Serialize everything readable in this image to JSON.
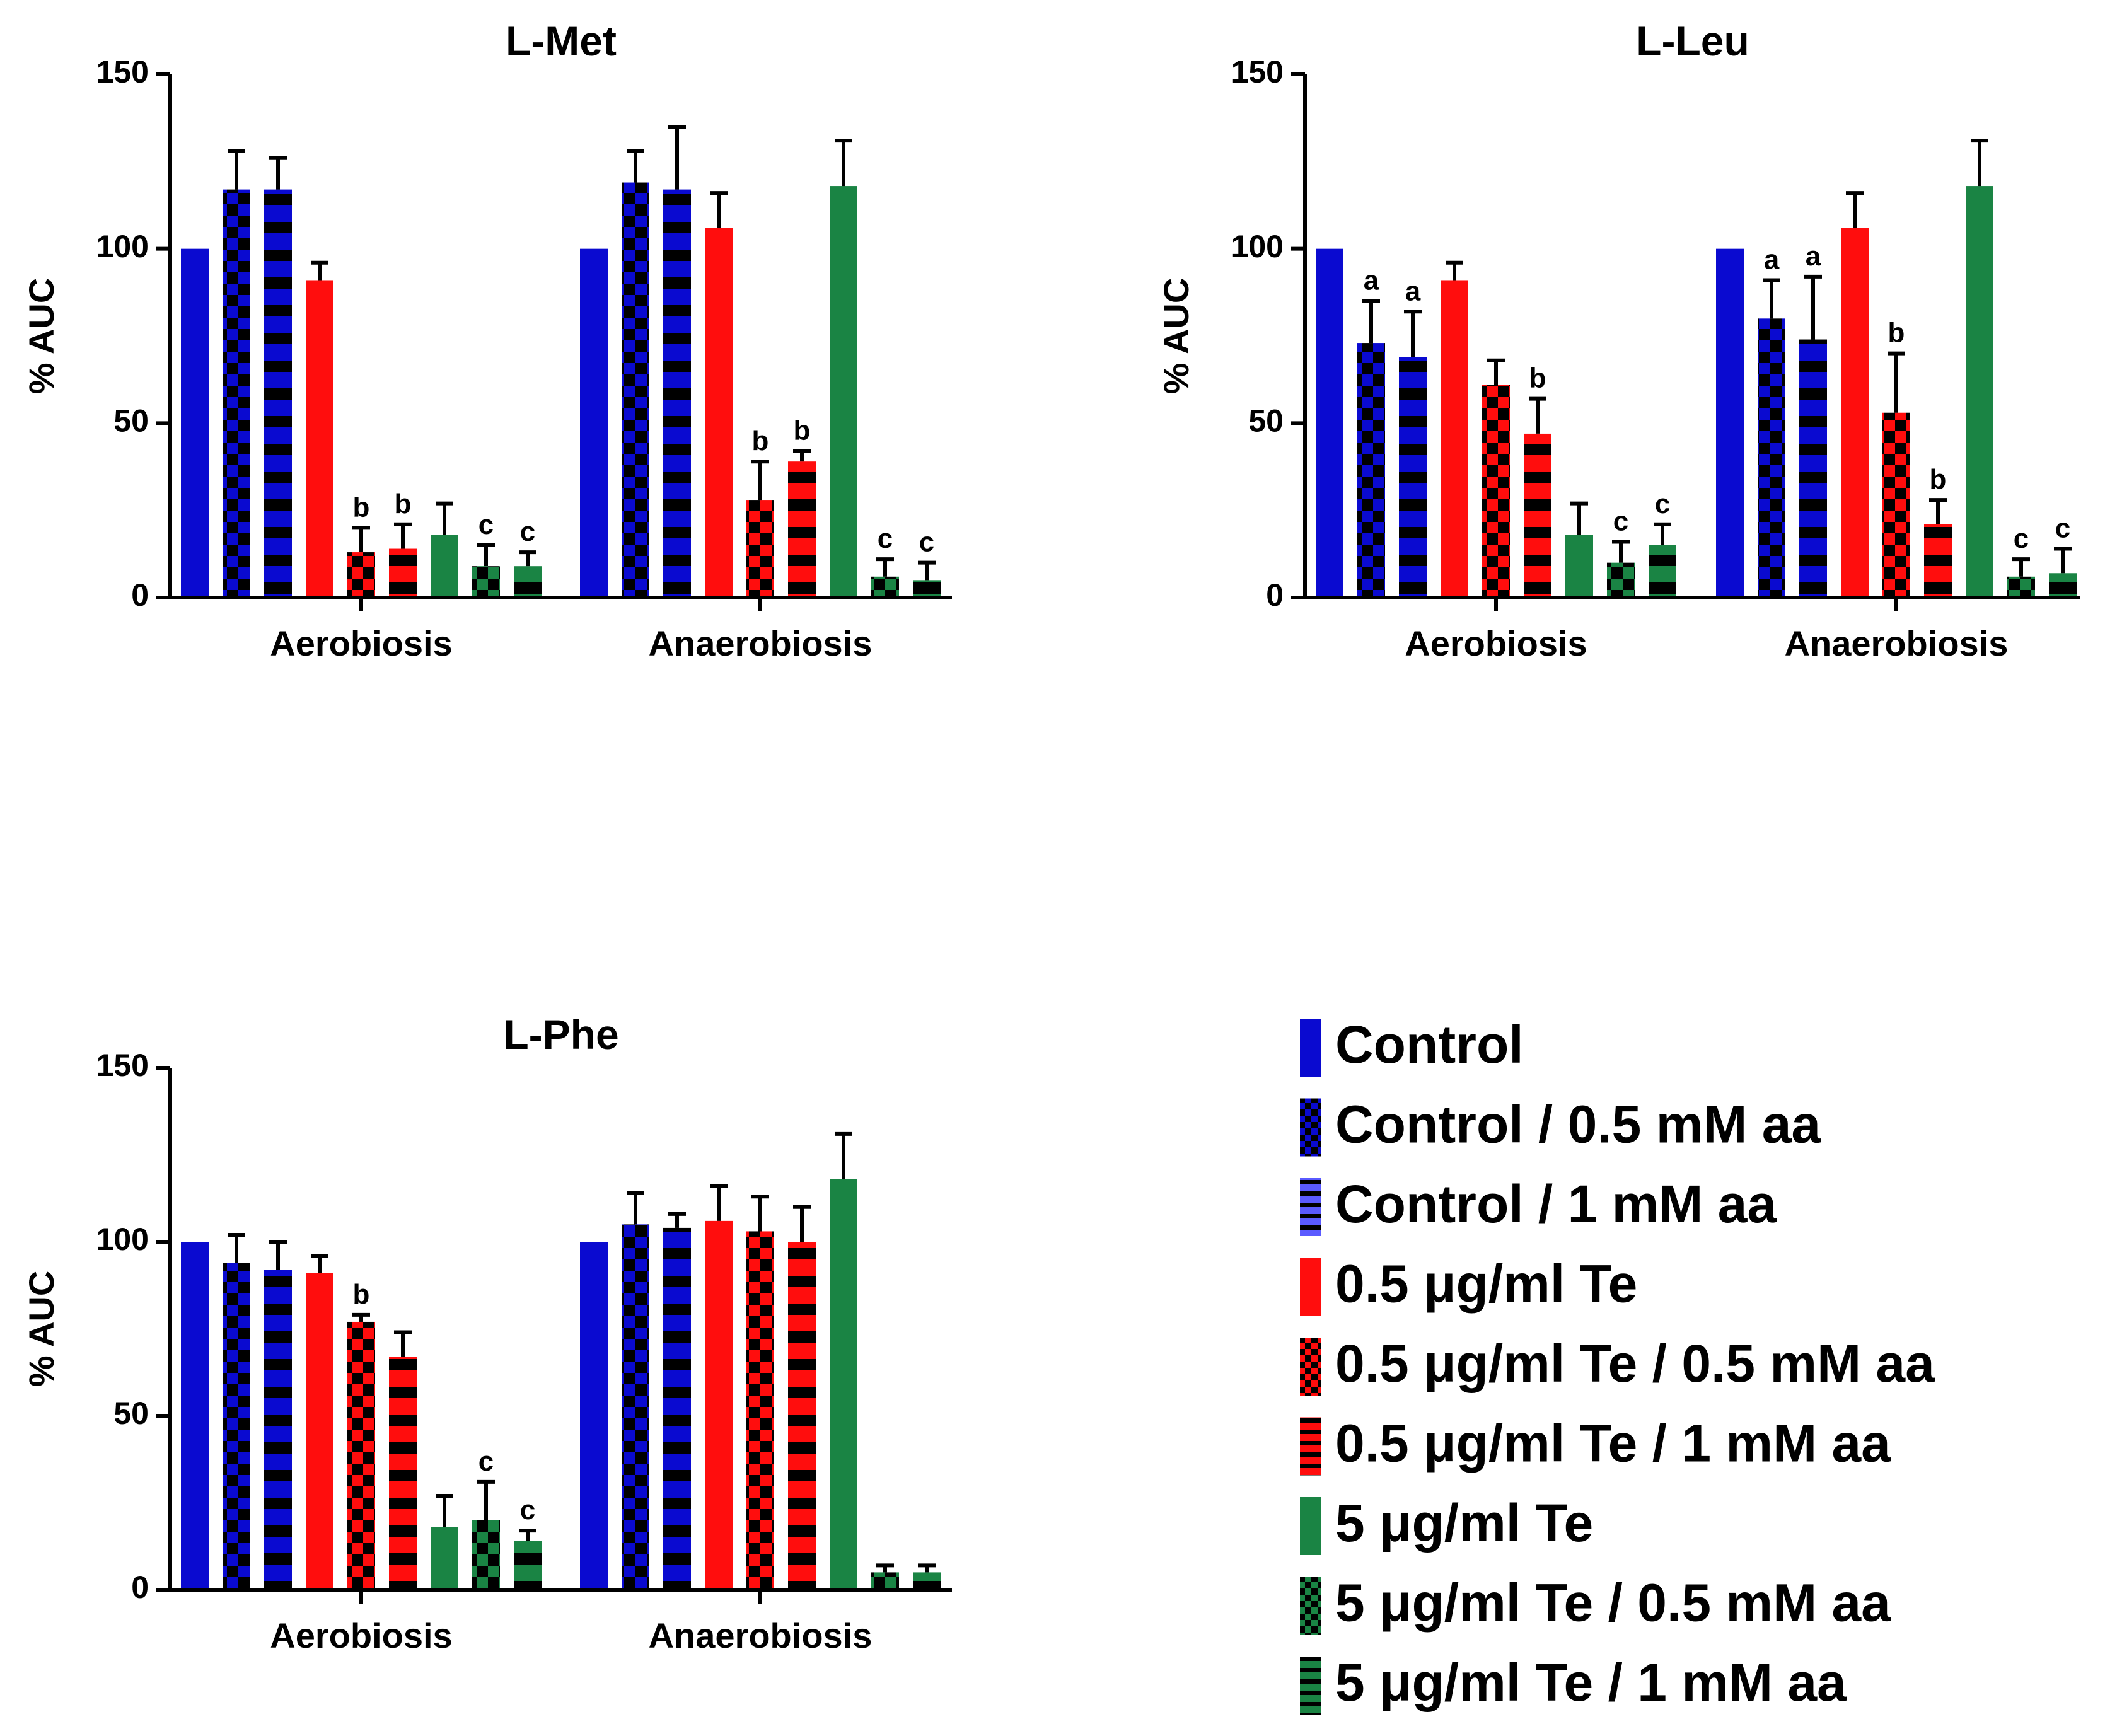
{
  "legend": [
    {
      "label": "Control",
      "color": "#0a0ad0",
      "pattern": "solid"
    },
    {
      "label": "Control / 0.5 mM aa",
      "color": "#0a0ad0",
      "pattern": "checker"
    },
    {
      "label": "Control / 1 mM aa",
      "color": "#0a0ad0",
      "pattern": "stripe"
    },
    {
      "label": "0.5 μg/ml Te",
      "color": "#ff0d0d",
      "pattern": "solid"
    },
    {
      "label": "0.5 μg/ml Te / 0.5 mM aa",
      "color": "#ff0d0d",
      "pattern": "checker"
    },
    {
      "label": "0.5 μg/ml Te / 1 mM aa",
      "color": "#ff0d0d",
      "pattern": "stripe"
    },
    {
      "label": "5 μg/ml Te",
      "color": "#1a8444",
      "pattern": "solid"
    },
    {
      "label": "5 μg/ml Te / 0.5 mM aa",
      "color": "#1a8444",
      "pattern": "checker"
    },
    {
      "label": "5 μg/ml Te / 1 mM aa",
      "color": "#1a8444",
      "pattern": "stripe"
    }
  ],
  "chart_data": [
    {
      "type": "bar",
      "title": "L-Met",
      "ylabel": "% AUC",
      "xlabel": "",
      "ylim": [
        0,
        150
      ],
      "yticks": [
        0,
        50,
        100,
        150
      ],
      "categories": [
        "Aerobiosis",
        "Anaerobiosis"
      ],
      "series": [
        {
          "name": "Control",
          "values": [
            100,
            100
          ],
          "errors": [
            0,
            0
          ],
          "sig": [
            "",
            ""
          ]
        },
        {
          "name": "Control / 0.5 mM aa",
          "values": [
            117,
            119
          ],
          "errors": [
            11,
            9
          ],
          "sig": [
            "",
            ""
          ]
        },
        {
          "name": "Control / 1 mM aa",
          "values": [
            117,
            117
          ],
          "errors": [
            9,
            18
          ],
          "sig": [
            "",
            ""
          ]
        },
        {
          "name": "0.5 μg/ml Te",
          "values": [
            91,
            106
          ],
          "errors": [
            5,
            10
          ],
          "sig": [
            "",
            ""
          ]
        },
        {
          "name": "0.5 μg/ml Te / 0.5 mM aa",
          "values": [
            13,
            28
          ],
          "errors": [
            7,
            11
          ],
          "sig": [
            "b",
            "b"
          ]
        },
        {
          "name": "0.5 μg/ml Te / 1 mM aa",
          "values": [
            14,
            39
          ],
          "errors": [
            7,
            3
          ],
          "sig": [
            "b",
            "b"
          ]
        },
        {
          "name": "5 μg/ml Te",
          "values": [
            18,
            118
          ],
          "errors": [
            9,
            13
          ],
          "sig": [
            "",
            ""
          ]
        },
        {
          "name": "5 μg/ml Te / 0.5 mM aa",
          "values": [
            9,
            6
          ],
          "errors": [
            6,
            5
          ],
          "sig": [
            "c",
            "c"
          ]
        },
        {
          "name": "5 μg/ml Te / 1 mM aa",
          "values": [
            9,
            5
          ],
          "errors": [
            4,
            5
          ],
          "sig": [
            "c",
            "c"
          ]
        }
      ]
    },
    {
      "type": "bar",
      "title": "L-Leu",
      "ylabel": "% AUC",
      "xlabel": "",
      "ylim": [
        0,
        150
      ],
      "yticks": [
        0,
        50,
        100,
        150
      ],
      "categories": [
        "Aerobiosis",
        "Anaerobiosis"
      ],
      "series": [
        {
          "name": "Control",
          "values": [
            100,
            100
          ],
          "errors": [
            0,
            0
          ],
          "sig": [
            "",
            ""
          ]
        },
        {
          "name": "Control / 0.5 mM aa",
          "values": [
            73,
            80
          ],
          "errors": [
            12,
            11
          ],
          "sig": [
            "a",
            "a"
          ]
        },
        {
          "name": "Control / 1 mM aa",
          "values": [
            69,
            74
          ],
          "errors": [
            13,
            18
          ],
          "sig": [
            "a",
            "a"
          ]
        },
        {
          "name": "0.5 μg/ml Te",
          "values": [
            91,
            106
          ],
          "errors": [
            5,
            10
          ],
          "sig": [
            "",
            ""
          ]
        },
        {
          "name": "0.5 μg/ml Te / 0.5 mM aa",
          "values": [
            61,
            53
          ],
          "errors": [
            7,
            17
          ],
          "sig": [
            "",
            "b"
          ]
        },
        {
          "name": "0.5 μg/ml Te / 1 mM aa",
          "values": [
            47,
            21
          ],
          "errors": [
            10,
            7
          ],
          "sig": [
            "b",
            "b"
          ]
        },
        {
          "name": "5 μg/ml Te",
          "values": [
            18,
            118
          ],
          "errors": [
            9,
            13
          ],
          "sig": [
            "",
            ""
          ]
        },
        {
          "name": "5 μg/ml Te / 0.5 mM aa",
          "values": [
            10,
            6
          ],
          "errors": [
            6,
            5
          ],
          "sig": [
            "c",
            "c"
          ]
        },
        {
          "name": "5 μg/ml Te / 1 mM aa",
          "values": [
            15,
            7
          ],
          "errors": [
            6,
            7
          ],
          "sig": [
            "c",
            "c"
          ]
        }
      ]
    },
    {
      "type": "bar",
      "title": "L-Phe",
      "ylabel": "% AUC",
      "xlabel": "",
      "ylim": [
        0,
        150
      ],
      "yticks": [
        0,
        50,
        100,
        150
      ],
      "categories": [
        "Aerobiosis",
        "Anaerobiosis"
      ],
      "series": [
        {
          "name": "Control",
          "values": [
            100,
            100
          ],
          "errors": [
            0,
            0
          ],
          "sig": [
            "",
            ""
          ]
        },
        {
          "name": "Control / 0.5 mM aa",
          "values": [
            94,
            105
          ],
          "errors": [
            8,
            9
          ],
          "sig": [
            "",
            ""
          ]
        },
        {
          "name": "Control / 1 mM aa",
          "values": [
            92,
            104
          ],
          "errors": [
            8,
            4
          ],
          "sig": [
            "",
            ""
          ]
        },
        {
          "name": "0.5 μg/ml Te",
          "values": [
            91,
            106
          ],
          "errors": [
            5,
            10
          ],
          "sig": [
            "",
            ""
          ]
        },
        {
          "name": "0.5 μg/ml Te / 0.5 mM aa",
          "values": [
            77,
            103
          ],
          "errors": [
            2,
            10
          ],
          "sig": [
            "b",
            ""
          ]
        },
        {
          "name": "0.5 μg/ml Te / 1 mM aa",
          "values": [
            67,
            100
          ],
          "errors": [
            7,
            10
          ],
          "sig": [
            "",
            ""
          ]
        },
        {
          "name": "5 μg/ml Te",
          "values": [
            18,
            118
          ],
          "errors": [
            9,
            13
          ],
          "sig": [
            "",
            ""
          ]
        },
        {
          "name": "5 μg/ml Te / 0.5 mM aa",
          "values": [
            20,
            5
          ],
          "errors": [
            11,
            2
          ],
          "sig": [
            "c",
            ""
          ]
        },
        {
          "name": "5 μg/ml Te / 1 mM aa",
          "values": [
            14,
            5
          ],
          "errors": [
            3,
            2
          ],
          "sig": [
            "c",
            ""
          ]
        }
      ]
    }
  ]
}
